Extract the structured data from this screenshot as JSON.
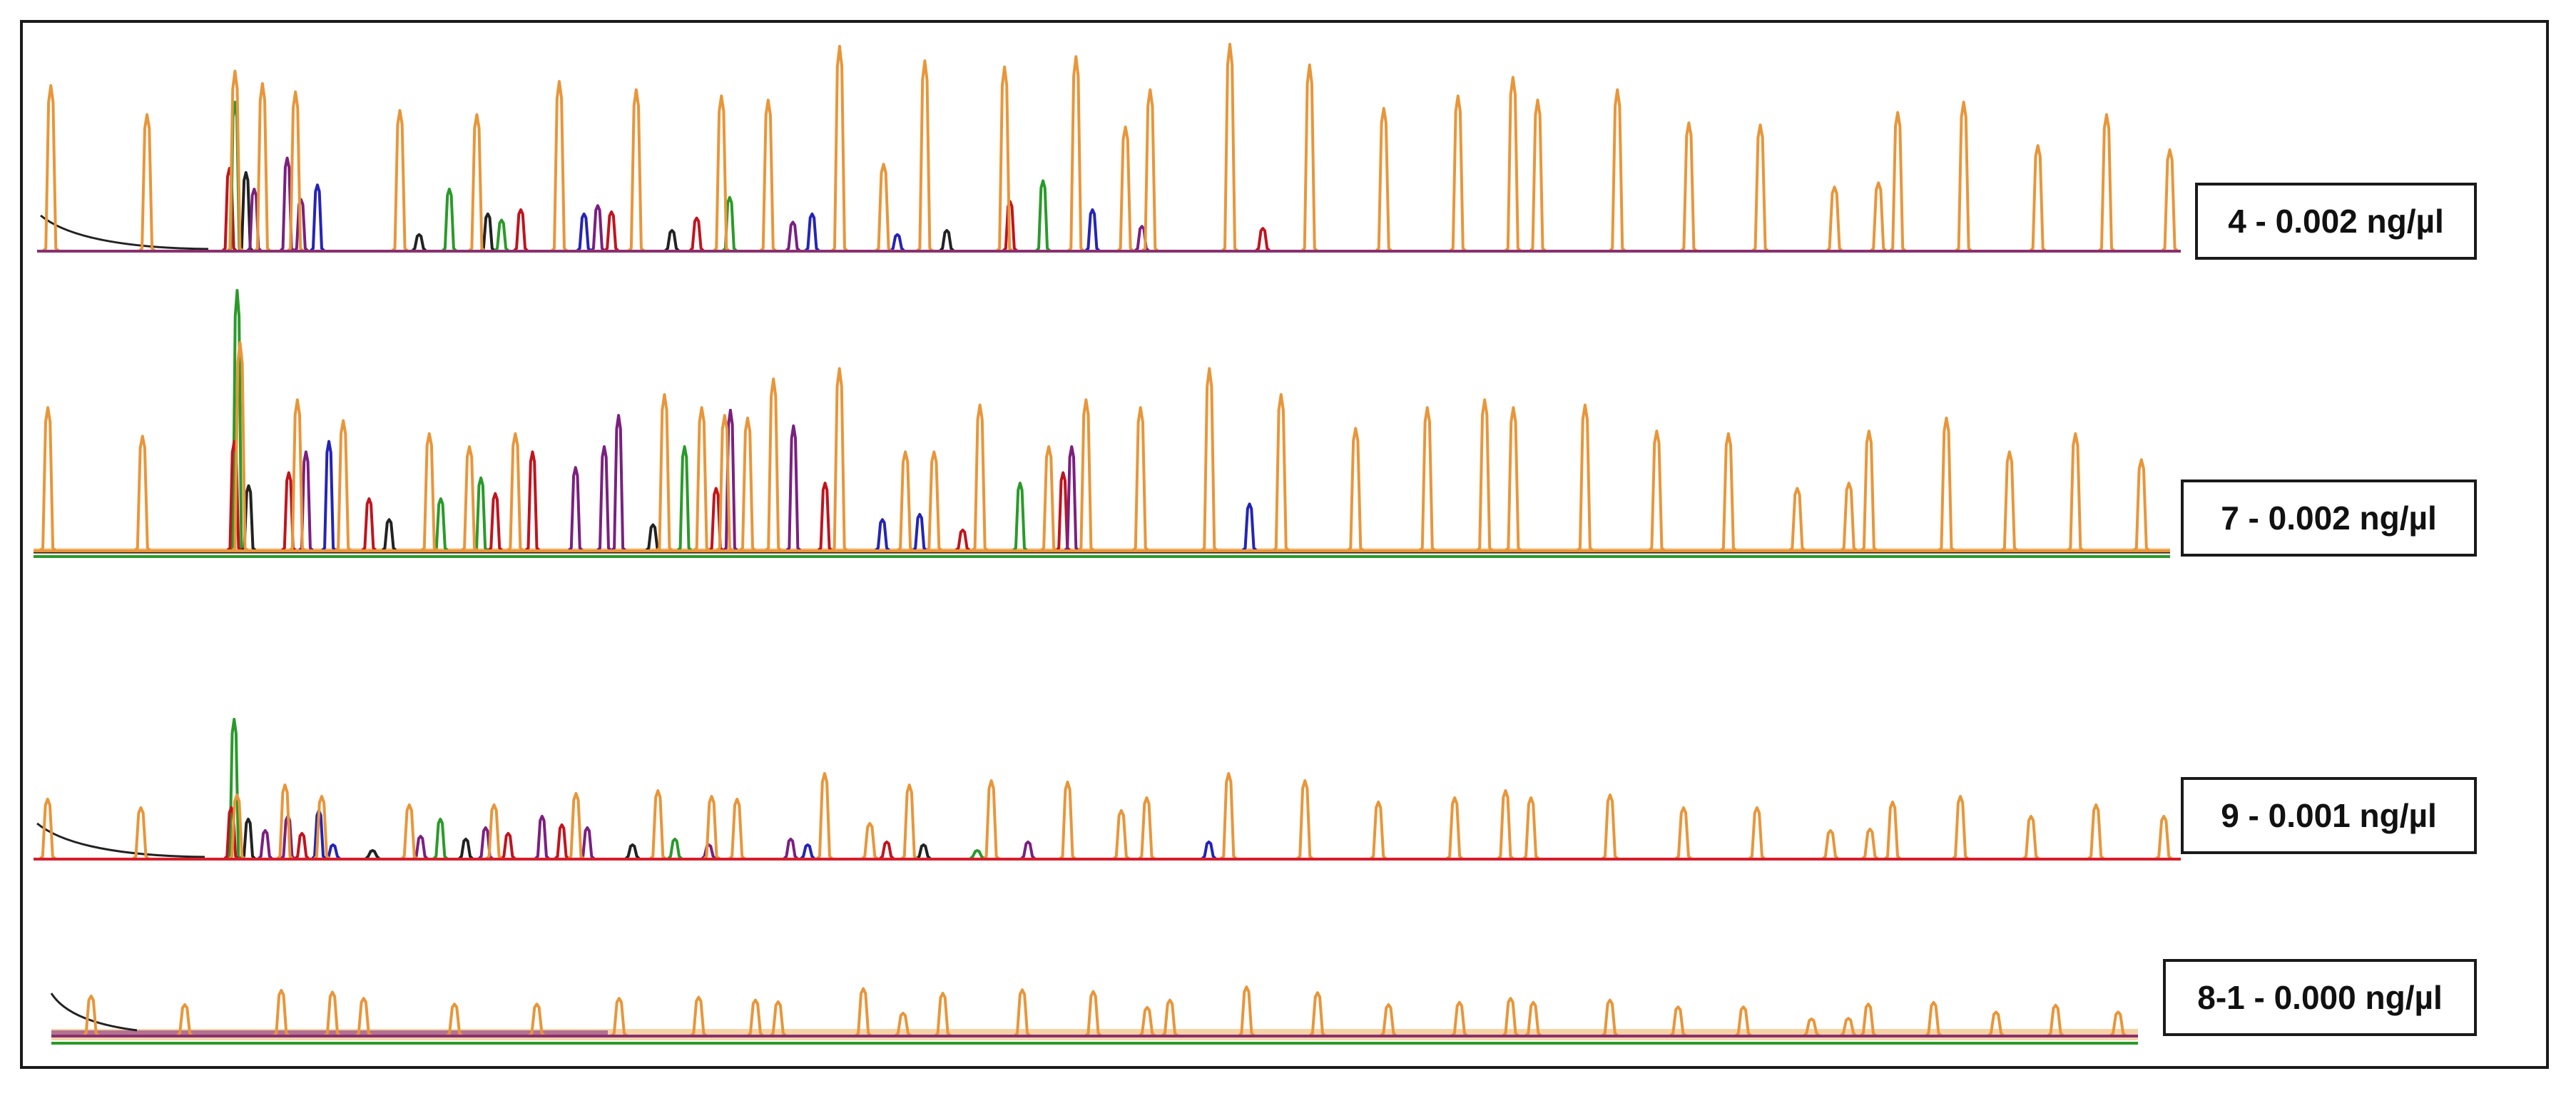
{
  "chart_data": {
    "type": "line",
    "x_unit": "fragment index",
    "colors": {
      "sizer": "#e8963a",
      "sizer_fill": "#f6d3a6",
      "green": "#2a9a2a",
      "red": "#c0141e",
      "blue": "#2424b8",
      "purple": "#7a2080",
      "black": "#222222",
      "baseline_pink": "#8a3070",
      "baseline_red": "#d81e2a"
    },
    "panels": [
      {
        "label": "4 - 0.002 ng/µl",
        "baseline_color": "#8a3070",
        "sizer_peaks": [
          {
            "x": 0.5,
            "h": 0.8
          },
          {
            "x": 4.0,
            "h": 0.66
          },
          {
            "x": 7.2,
            "h": 0.87
          },
          {
            "x": 8.2,
            "h": 0.81
          },
          {
            "x": 9.4,
            "h": 0.77
          },
          {
            "x": 13.2,
            "h": 0.68
          },
          {
            "x": 16.0,
            "h": 0.66
          },
          {
            "x": 19.0,
            "h": 0.82
          },
          {
            "x": 21.8,
            "h": 0.78
          },
          {
            "x": 24.9,
            "h": 0.75
          },
          {
            "x": 26.6,
            "h": 0.73
          },
          {
            "x": 29.2,
            "h": 0.99
          },
          {
            "x": 30.8,
            "h": 0.42
          },
          {
            "x": 32.3,
            "h": 0.92
          },
          {
            "x": 35.2,
            "h": 0.89
          },
          {
            "x": 37.8,
            "h": 0.94
          },
          {
            "x": 39.6,
            "h": 0.6
          },
          {
            "x": 40.5,
            "h": 0.78
          },
          {
            "x": 43.4,
            "h": 1.0
          },
          {
            "x": 46.3,
            "h": 0.9
          },
          {
            "x": 49.0,
            "h": 0.69
          },
          {
            "x": 51.7,
            "h": 0.75
          },
          {
            "x": 53.7,
            "h": 0.84
          },
          {
            "x": 54.6,
            "h": 0.73
          },
          {
            "x": 57.5,
            "h": 0.78
          },
          {
            "x": 60.1,
            "h": 0.62
          },
          {
            "x": 62.7,
            "h": 0.61
          },
          {
            "x": 65.4,
            "h": 0.31
          },
          {
            "x": 67.0,
            "h": 0.33
          },
          {
            "x": 67.7,
            "h": 0.67
          },
          {
            "x": 70.1,
            "h": 0.72
          },
          {
            "x": 72.8,
            "h": 0.51
          },
          {
            "x": 75.3,
            "h": 0.66
          },
          {
            "x": 77.6,
            "h": 0.49
          }
        ],
        "color_peaks": [
          {
            "x": 7.0,
            "h": 0.4,
            "c": "red"
          },
          {
            "x": 7.2,
            "h": 0.72,
            "c": "green"
          },
          {
            "x": 7.6,
            "h": 0.38,
            "c": "black"
          },
          {
            "x": 7.9,
            "h": 0.3,
            "c": "purple"
          },
          {
            "x": 9.1,
            "h": 0.45,
            "c": "purple"
          },
          {
            "x": 9.6,
            "h": 0.25,
            "c": "purple"
          },
          {
            "x": 10.2,
            "h": 0.32,
            "c": "blue"
          },
          {
            "x": 13.9,
            "h": 0.08,
            "c": "black"
          },
          {
            "x": 15.0,
            "h": 0.3,
            "c": "green"
          },
          {
            "x": 16.4,
            "h": 0.18,
            "c": "black"
          },
          {
            "x": 16.9,
            "h": 0.15,
            "c": "green"
          },
          {
            "x": 17.6,
            "h": 0.2,
            "c": "red"
          },
          {
            "x": 19.9,
            "h": 0.18,
            "c": "blue"
          },
          {
            "x": 20.4,
            "h": 0.22,
            "c": "purple"
          },
          {
            "x": 20.9,
            "h": 0.19,
            "c": "red"
          },
          {
            "x": 23.1,
            "h": 0.1,
            "c": "black"
          },
          {
            "x": 24.0,
            "h": 0.16,
            "c": "red"
          },
          {
            "x": 25.2,
            "h": 0.26,
            "c": "green"
          },
          {
            "x": 27.5,
            "h": 0.14,
            "c": "purple"
          },
          {
            "x": 28.2,
            "h": 0.18,
            "c": "blue"
          },
          {
            "x": 31.3,
            "h": 0.08,
            "c": "blue"
          },
          {
            "x": 33.1,
            "h": 0.1,
            "c": "black"
          },
          {
            "x": 35.4,
            "h": 0.24,
            "c": "red"
          },
          {
            "x": 36.6,
            "h": 0.34,
            "c": "green"
          },
          {
            "x": 38.4,
            "h": 0.2,
            "c": "blue"
          },
          {
            "x": 40.2,
            "h": 0.12,
            "c": "purple"
          },
          {
            "x": 44.6,
            "h": 0.11,
            "c": "red"
          }
        ]
      },
      {
        "label": "7 - 0.002 ng/µl",
        "baseline_color": "#e8963a",
        "sizer_peaks": [
          {
            "x": 0.5,
            "h": 0.55
          },
          {
            "x": 3.8,
            "h": 0.44
          },
          {
            "x": 7.2,
            "h": 0.8
          },
          {
            "x": 9.2,
            "h": 0.58
          },
          {
            "x": 10.8,
            "h": 0.5
          },
          {
            "x": 13.8,
            "h": 0.45
          },
          {
            "x": 15.2,
            "h": 0.4
          },
          {
            "x": 16.8,
            "h": 0.45
          },
          {
            "x": 22.0,
            "h": 0.6
          },
          {
            "x": 23.3,
            "h": 0.55
          },
          {
            "x": 24.1,
            "h": 0.52
          },
          {
            "x": 24.9,
            "h": 0.51
          },
          {
            "x": 25.8,
            "h": 0.66
          },
          {
            "x": 28.1,
            "h": 0.7
          },
          {
            "x": 30.4,
            "h": 0.38
          },
          {
            "x": 31.4,
            "h": 0.38
          },
          {
            "x": 33.0,
            "h": 0.56
          },
          {
            "x": 35.4,
            "h": 0.4
          },
          {
            "x": 36.7,
            "h": 0.58
          },
          {
            "x": 38.6,
            "h": 0.55
          },
          {
            "x": 41.0,
            "h": 0.7
          },
          {
            "x": 43.5,
            "h": 0.6
          },
          {
            "x": 46.1,
            "h": 0.47
          },
          {
            "x": 48.6,
            "h": 0.55
          },
          {
            "x": 50.6,
            "h": 0.58
          },
          {
            "x": 51.6,
            "h": 0.55
          },
          {
            "x": 54.1,
            "h": 0.56
          },
          {
            "x": 56.6,
            "h": 0.46
          },
          {
            "x": 59.1,
            "h": 0.45
          },
          {
            "x": 61.5,
            "h": 0.24
          },
          {
            "x": 63.3,
            "h": 0.26
          },
          {
            "x": 64.0,
            "h": 0.46
          },
          {
            "x": 66.7,
            "h": 0.51
          },
          {
            "x": 68.9,
            "h": 0.38
          },
          {
            "x": 71.2,
            "h": 0.45
          },
          {
            "x": 73.5,
            "h": 0.35
          }
        ],
        "color_peaks": [
          {
            "x": 7.1,
            "h": 1.0,
            "c": "green"
          },
          {
            "x": 7.0,
            "h": 0.42,
            "c": "red"
          },
          {
            "x": 7.5,
            "h": 0.25,
            "c": "black"
          },
          {
            "x": 8.9,
            "h": 0.3,
            "c": "red"
          },
          {
            "x": 9.5,
            "h": 0.38,
            "c": "purple"
          },
          {
            "x": 10.3,
            "h": 0.42,
            "c": "blue"
          },
          {
            "x": 11.7,
            "h": 0.2,
            "c": "red"
          },
          {
            "x": 12.4,
            "h": 0.12,
            "c": "black"
          },
          {
            "x": 14.2,
            "h": 0.2,
            "c": "green"
          },
          {
            "x": 15.6,
            "h": 0.28,
            "c": "green"
          },
          {
            "x": 16.1,
            "h": 0.22,
            "c": "red"
          },
          {
            "x": 17.4,
            "h": 0.38,
            "c": "red"
          },
          {
            "x": 18.9,
            "h": 0.32,
            "c": "purple"
          },
          {
            "x": 19.9,
            "h": 0.4,
            "c": "purple"
          },
          {
            "x": 20.4,
            "h": 0.52,
            "c": "purple"
          },
          {
            "x": 21.6,
            "h": 0.1,
            "c": "black"
          },
          {
            "x": 22.7,
            "h": 0.4,
            "c": "green"
          },
          {
            "x": 23.8,
            "h": 0.24,
            "c": "red"
          },
          {
            "x": 24.3,
            "h": 0.54,
            "c": "purple"
          },
          {
            "x": 26.5,
            "h": 0.48,
            "c": "purple"
          },
          {
            "x": 27.6,
            "h": 0.26,
            "c": "red"
          },
          {
            "x": 29.6,
            "h": 0.12,
            "c": "blue"
          },
          {
            "x": 30.9,
            "h": 0.14,
            "c": "blue"
          },
          {
            "x": 32.4,
            "h": 0.08,
            "c": "red"
          },
          {
            "x": 34.4,
            "h": 0.26,
            "c": "green"
          },
          {
            "x": 35.9,
            "h": 0.3,
            "c": "red"
          },
          {
            "x": 36.2,
            "h": 0.4,
            "c": "purple"
          },
          {
            "x": 42.4,
            "h": 0.18,
            "c": "blue"
          }
        ]
      },
      {
        "label": "9 - 0.001 ng/µl",
        "baseline_color": "#d81e2a",
        "sizer_peaks": [
          {
            "x": 0.5,
            "h": 0.42
          },
          {
            "x": 3.8,
            "h": 0.36
          },
          {
            "x": 7.2,
            "h": 0.45
          },
          {
            "x": 8.9,
            "h": 0.52
          },
          {
            "x": 10.2,
            "h": 0.44
          },
          {
            "x": 13.3,
            "h": 0.38
          },
          {
            "x": 16.3,
            "h": 0.38
          },
          {
            "x": 19.2,
            "h": 0.46
          },
          {
            "x": 22.1,
            "h": 0.48
          },
          {
            "x": 24.0,
            "h": 0.44
          },
          {
            "x": 24.9,
            "h": 0.42
          },
          {
            "x": 28.0,
            "h": 0.6
          },
          {
            "x": 29.6,
            "h": 0.25
          },
          {
            "x": 31.0,
            "h": 0.52
          },
          {
            "x": 33.9,
            "h": 0.55
          },
          {
            "x": 36.6,
            "h": 0.54
          },
          {
            "x": 38.5,
            "h": 0.34
          },
          {
            "x": 39.4,
            "h": 0.43
          },
          {
            "x": 42.3,
            "h": 0.6
          },
          {
            "x": 45.0,
            "h": 0.55
          },
          {
            "x": 47.6,
            "h": 0.4
          },
          {
            "x": 50.3,
            "h": 0.43
          },
          {
            "x": 52.1,
            "h": 0.48
          },
          {
            "x": 53.0,
            "h": 0.43
          },
          {
            "x": 55.8,
            "h": 0.45
          },
          {
            "x": 58.4,
            "h": 0.36
          },
          {
            "x": 61.0,
            "h": 0.36
          },
          {
            "x": 63.6,
            "h": 0.2
          },
          {
            "x": 65.0,
            "h": 0.21
          },
          {
            "x": 65.8,
            "h": 0.4
          },
          {
            "x": 68.2,
            "h": 0.44
          },
          {
            "x": 70.7,
            "h": 0.3
          },
          {
            "x": 73.0,
            "h": 0.38
          },
          {
            "x": 75.4,
            "h": 0.3
          }
        ],
        "color_peaks": [
          {
            "x": 7.1,
            "h": 0.98,
            "c": "green"
          },
          {
            "x": 7.0,
            "h": 0.36,
            "c": "red"
          },
          {
            "x": 7.6,
            "h": 0.28,
            "c": "black"
          },
          {
            "x": 8.2,
            "h": 0.2,
            "c": "purple"
          },
          {
            "x": 9.0,
            "h": 0.3,
            "c": "purple"
          },
          {
            "x": 9.5,
            "h": 0.18,
            "c": "red"
          },
          {
            "x": 10.1,
            "h": 0.34,
            "c": "blue"
          },
          {
            "x": 10.6,
            "h": 0.1,
            "c": "blue"
          },
          {
            "x": 12.0,
            "h": 0.06,
            "c": "black"
          },
          {
            "x": 13.7,
            "h": 0.16,
            "c": "purple"
          },
          {
            "x": 14.4,
            "h": 0.28,
            "c": "green"
          },
          {
            "x": 15.3,
            "h": 0.14,
            "c": "black"
          },
          {
            "x": 16.0,
            "h": 0.22,
            "c": "purple"
          },
          {
            "x": 16.8,
            "h": 0.18,
            "c": "red"
          },
          {
            "x": 18.0,
            "h": 0.3,
            "c": "purple"
          },
          {
            "x": 18.7,
            "h": 0.24,
            "c": "red"
          },
          {
            "x": 19.6,
            "h": 0.22,
            "c": "purple"
          },
          {
            "x": 21.2,
            "h": 0.1,
            "c": "black"
          },
          {
            "x": 22.7,
            "h": 0.14,
            "c": "green"
          },
          {
            "x": 23.9,
            "h": 0.1,
            "c": "purple"
          },
          {
            "x": 26.8,
            "h": 0.14,
            "c": "purple"
          },
          {
            "x": 27.4,
            "h": 0.1,
            "c": "blue"
          },
          {
            "x": 30.2,
            "h": 0.12,
            "c": "red"
          },
          {
            "x": 31.5,
            "h": 0.1,
            "c": "black"
          },
          {
            "x": 33.4,
            "h": 0.06,
            "c": "green"
          },
          {
            "x": 35.2,
            "h": 0.12,
            "c": "purple"
          },
          {
            "x": 41.6,
            "h": 0.12,
            "c": "blue"
          }
        ]
      },
      {
        "label": "8-1 - 0.000 ng/µl",
        "baseline_color": "#8a3070",
        "sizer_peaks": [
          {
            "x": 1.4,
            "h": 0.7
          },
          {
            "x": 4.7,
            "h": 0.55
          },
          {
            "x": 8.1,
            "h": 0.8
          },
          {
            "x": 9.9,
            "h": 0.77
          },
          {
            "x": 11.0,
            "h": 0.66
          },
          {
            "x": 14.2,
            "h": 0.56
          },
          {
            "x": 17.1,
            "h": 0.56
          },
          {
            "x": 20.0,
            "h": 0.66
          },
          {
            "x": 22.8,
            "h": 0.68
          },
          {
            "x": 24.8,
            "h": 0.63
          },
          {
            "x": 25.6,
            "h": 0.6
          },
          {
            "x": 28.6,
            "h": 0.83
          },
          {
            "x": 30.0,
            "h": 0.4
          },
          {
            "x": 31.4,
            "h": 0.75
          },
          {
            "x": 34.2,
            "h": 0.81
          },
          {
            "x": 36.7,
            "h": 0.78
          },
          {
            "x": 38.6,
            "h": 0.5
          },
          {
            "x": 39.4,
            "h": 0.63
          },
          {
            "x": 42.1,
            "h": 0.86
          },
          {
            "x": 44.6,
            "h": 0.76
          },
          {
            "x": 47.1,
            "h": 0.55
          },
          {
            "x": 49.6,
            "h": 0.59
          },
          {
            "x": 51.4,
            "h": 0.66
          },
          {
            "x": 52.2,
            "h": 0.59
          },
          {
            "x": 54.9,
            "h": 0.63
          },
          {
            "x": 57.3,
            "h": 0.51
          },
          {
            "x": 59.6,
            "h": 0.51
          },
          {
            "x": 62.0,
            "h": 0.3
          },
          {
            "x": 63.3,
            "h": 0.31
          },
          {
            "x": 64.0,
            "h": 0.56
          },
          {
            "x": 66.3,
            "h": 0.59
          },
          {
            "x": 68.5,
            "h": 0.42
          },
          {
            "x": 70.6,
            "h": 0.54
          },
          {
            "x": 72.8,
            "h": 0.42
          }
        ],
        "color_peaks": []
      }
    ]
  }
}
